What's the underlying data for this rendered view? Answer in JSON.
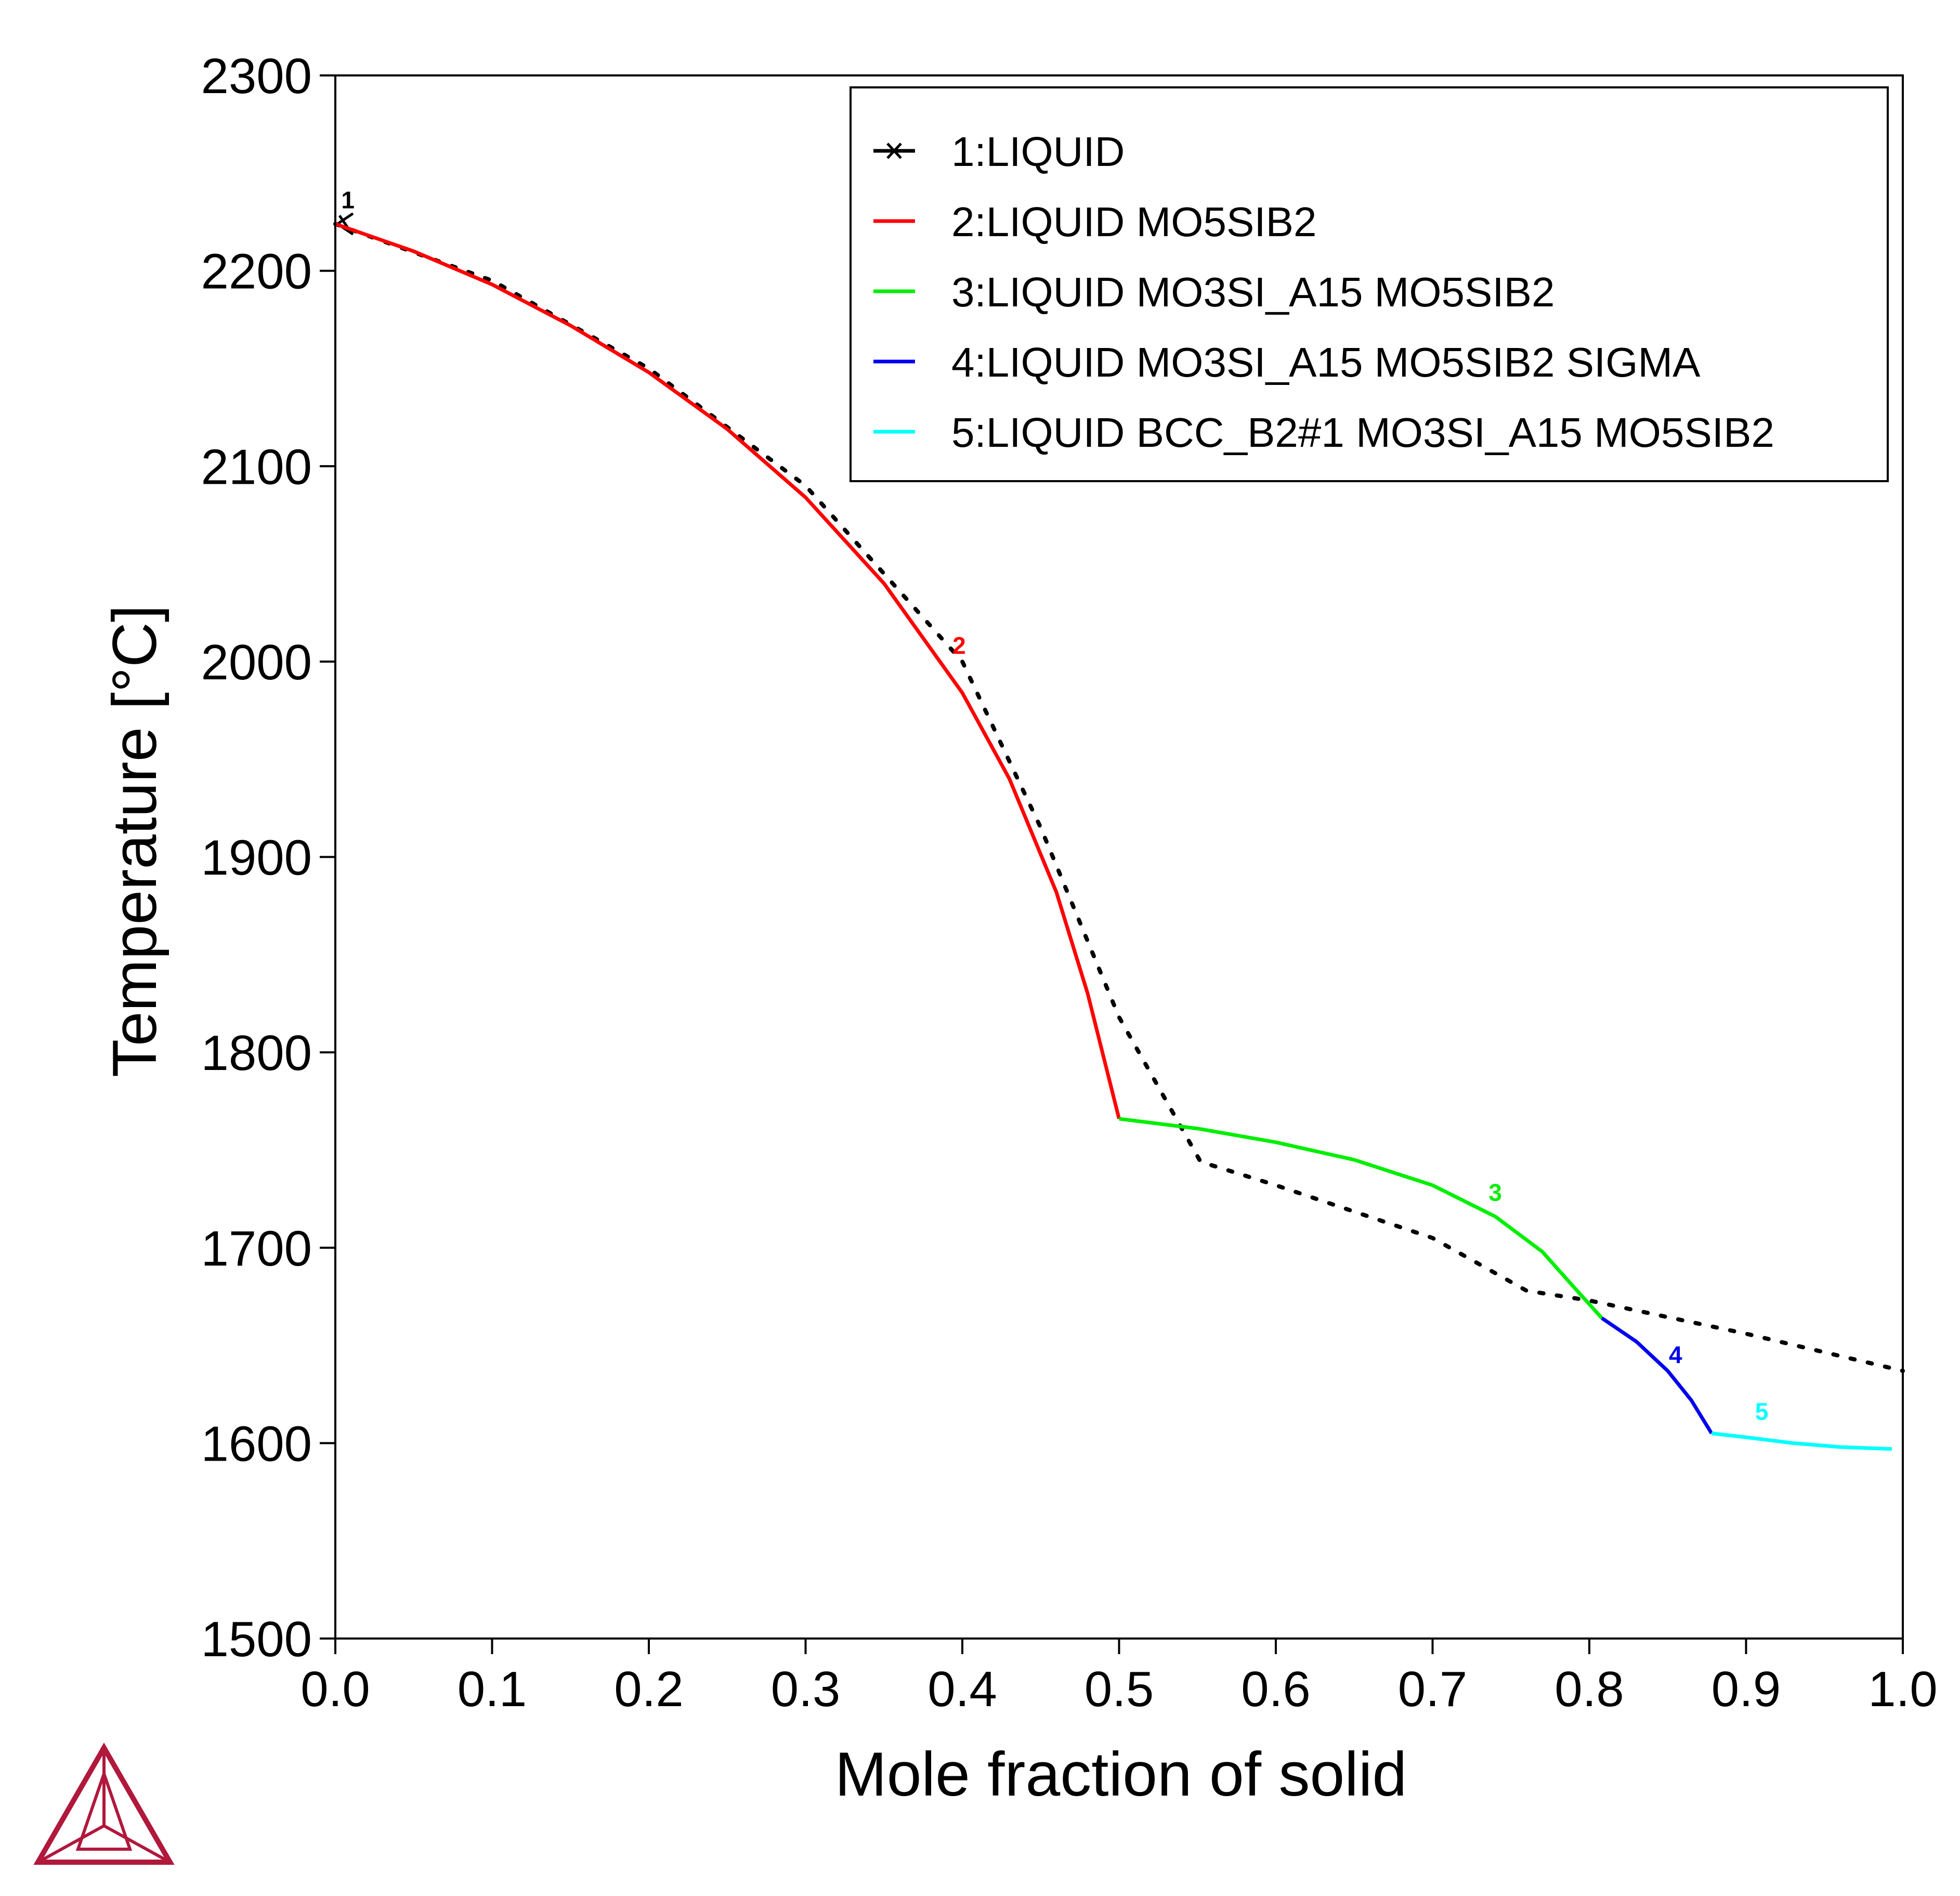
{
  "chart_data": {
    "type": "line",
    "xlabel": "Mole fraction of solid",
    "ylabel": "Temperature [°C]",
    "xlim": [
      0.0,
      1.0
    ],
    "ylim": [
      1500,
      2300
    ],
    "xticks": [
      "0.0",
      "0.1",
      "0.2",
      "0.3",
      "0.4",
      "0.5",
      "0.6",
      "0.7",
      "0.8",
      "0.9",
      "1.0"
    ],
    "yticks": [
      "1500",
      "1600",
      "1700",
      "1800",
      "1900",
      "2000",
      "2100",
      "2200",
      "2300"
    ],
    "legend_position": "top-right",
    "grid": false,
    "series": [
      {
        "name": "1:LIQUID",
        "label": "1",
        "color": "#000000",
        "style": "marker",
        "label_at": [
          0.008,
          2232
        ],
        "points": [
          [
            0.0,
            2224
          ]
        ]
      },
      {
        "name": "2:LIQUID MO5SIB2",
        "label": "2",
        "color": "#ff0000",
        "style": "solid",
        "label_at": [
          0.398,
          2004
        ],
        "points": [
          [
            0.0,
            2224
          ],
          [
            0.05,
            2210
          ],
          [
            0.1,
            2193
          ],
          [
            0.15,
            2172
          ],
          [
            0.2,
            2148
          ],
          [
            0.25,
            2119
          ],
          [
            0.3,
            2084
          ],
          [
            0.35,
            2040
          ],
          [
            0.4,
            1984
          ],
          [
            0.43,
            1940
          ],
          [
            0.46,
            1882
          ],
          [
            0.48,
            1830
          ],
          [
            0.5,
            1766
          ]
        ]
      },
      {
        "name": "3:LIQUID MO3SI_A15 MO5SIB2",
        "label": "3",
        "color": "#00ee00",
        "style": "solid",
        "label_at": [
          0.74,
          1724
        ],
        "points": [
          [
            0.5,
            1766
          ],
          [
            0.55,
            1761
          ],
          [
            0.6,
            1754
          ],
          [
            0.65,
            1745
          ],
          [
            0.7,
            1732
          ],
          [
            0.74,
            1716
          ],
          [
            0.77,
            1698
          ],
          [
            0.79,
            1680
          ],
          [
            0.808,
            1664
          ]
        ]
      },
      {
        "name": "4:LIQUID MO3SI_A15 MO5SIB2 SIGMA",
        "label": "4",
        "color": "#0000ee",
        "style": "solid",
        "label_at": [
          0.855,
          1641
        ],
        "points": [
          [
            0.808,
            1664
          ],
          [
            0.83,
            1652
          ],
          [
            0.85,
            1637
          ],
          [
            0.865,
            1622
          ],
          [
            0.878,
            1605
          ]
        ]
      },
      {
        "name": "5:LIQUID BCC_B2#1 MO3SI_A15 MO5SIB2",
        "label": "5",
        "color": "#00ffff",
        "style": "solid",
        "label_at": [
          0.91,
          1612
        ],
        "points": [
          [
            0.878,
            1605
          ],
          [
            0.9,
            1603
          ],
          [
            0.93,
            1600
          ],
          [
            0.96,
            1598
          ],
          [
            0.993,
            1597
          ]
        ]
      }
    ],
    "scheil_reference_dotted": {
      "color": "#000000",
      "style": "dotted",
      "points": [
        [
          0.0,
          2224
        ],
        [
          0.1,
          2195
        ],
        [
          0.2,
          2150
        ],
        [
          0.3,
          2090
        ],
        [
          0.4,
          2000
        ],
        [
          0.45,
          1915
        ],
        [
          0.5,
          1818
        ],
        [
          0.552,
          1744
        ],
        [
          0.6,
          1732
        ],
        [
          0.7,
          1705
        ],
        [
          0.76,
          1678
        ],
        [
          0.8,
          1673
        ],
        [
          0.9,
          1656
        ],
        [
          1.0,
          1637
        ]
      ]
    }
  }
}
